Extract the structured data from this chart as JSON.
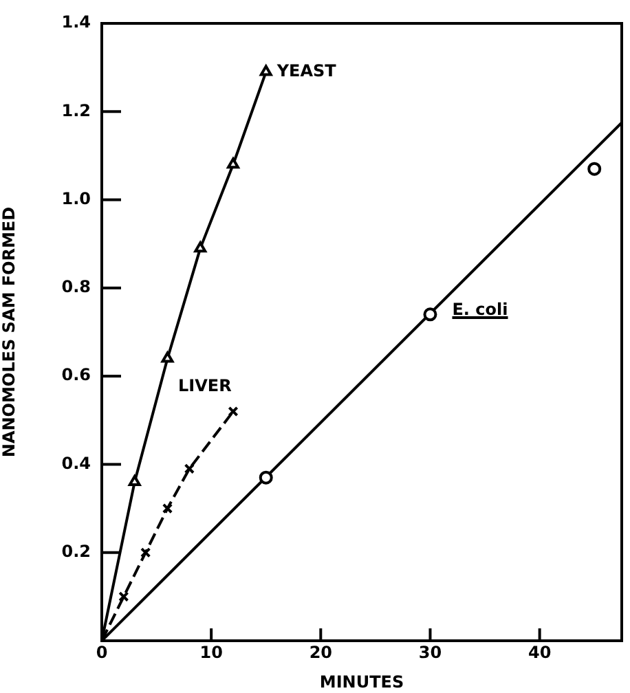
{
  "chart_data": {
    "type": "line",
    "xlabel": "MINUTES",
    "ylabel": "NANOMOLES SAM FORMED",
    "xlim": [
      0,
      47.5
    ],
    "ylim": [
      0,
      1.4
    ],
    "xticks": [
      0,
      10,
      20,
      30,
      40
    ],
    "yticks": [
      0.2,
      0.4,
      0.6,
      0.8,
      {
        "value": 1,
        "label": "1.0"
      },
      1.2,
      1.4
    ],
    "grid": false,
    "legend": false,
    "series": [
      {
        "name": "YEAST",
        "color": "#000000",
        "marker": "triangle",
        "line_style": "solid",
        "x": [
          0,
          3,
          6,
          9,
          12,
          15
        ],
        "values": [
          0,
          0.36,
          0.64,
          0.89,
          1.08,
          1.29
        ]
      },
      {
        "name": "LIVER",
        "color": "#000000",
        "marker": "cross",
        "line_style": "dashed",
        "x": [
          0,
          2,
          4,
          6,
          8,
          12
        ],
        "values": [
          0,
          0.1,
          0.2,
          0.3,
          0.39,
          0.52
        ]
      },
      {
        "name": "E. coli",
        "type": "scatter",
        "color": "#000000",
        "marker": "circle",
        "x": [
          15,
          30,
          45
        ],
        "values": [
          0.37,
          0.74,
          1.07
        ]
      },
      {
        "color": "#000000",
        "marker": "none",
        "line_style": "solid",
        "x": [
          0,
          47.5
        ],
        "values": [
          0,
          1.175
        ]
      }
    ]
  }
}
